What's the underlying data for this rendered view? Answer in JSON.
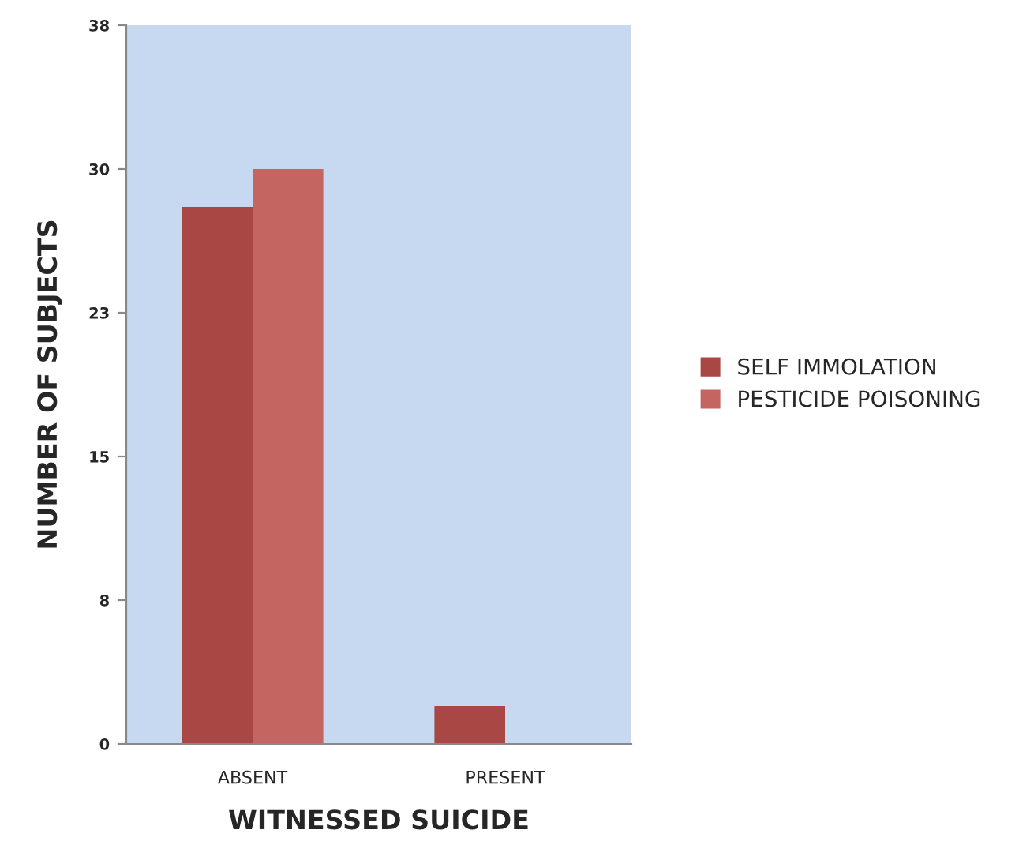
{
  "chart_data": {
    "type": "bar",
    "xlabel": "WITNESSED SUICIDE",
    "ylabel": "NUMBER OF SUBJECTS",
    "categories": [
      "ABSENT",
      "PRESENT"
    ],
    "series": [
      {
        "name": "SELF IMMOLATION",
        "color": "#a94744",
        "values": [
          28.4,
          2
        ]
      },
      {
        "name": "PESTICIDE POISONING",
        "color": "#c46562",
        "values": [
          30.4,
          0
        ]
      }
    ],
    "ylim": [
      0,
      38
    ],
    "yticks": [
      0,
      {
        "value": 7.6,
        "label": "8"
      },
      {
        "value": 15.2,
        "label": "15"
      },
      {
        "value": 22.8,
        "label": "23"
      },
      {
        "value": 30.4,
        "label": "30"
      },
      38
    ],
    "grid": false,
    "legend": "right"
  }
}
